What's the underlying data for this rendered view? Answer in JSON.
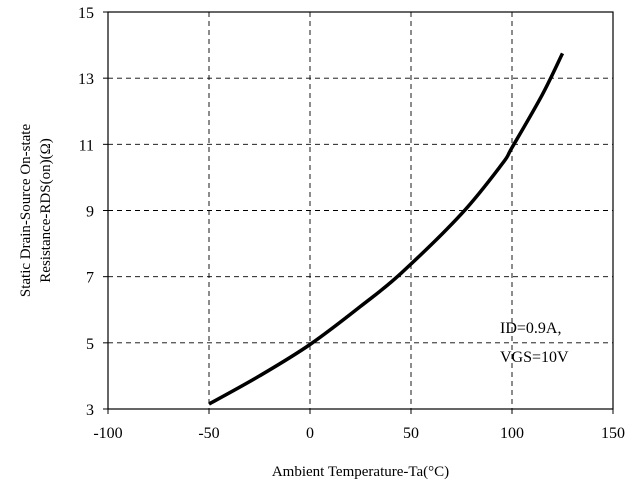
{
  "chart_data": {
    "type": "line",
    "xlabel": "Ambient Temperature-Ta(°C)",
    "ylabel_lines": [
      "Static Drain-Source On-state",
      "Resistance-RDS(on)(Ω)"
    ],
    "xlim": [
      -100,
      150
    ],
    "ylim": [
      3,
      15
    ],
    "xticks": [
      -100,
      -50,
      0,
      50,
      100,
      150
    ],
    "yticks": [
      3,
      5,
      7,
      9,
      11,
      13,
      15
    ],
    "x_tick_labels": [
      "-100",
      "-50",
      "0",
      "50",
      "100",
      "150"
    ],
    "y_tick_labels": [
      "3",
      "5",
      "7",
      "9",
      "11",
      "13",
      "15"
    ],
    "grid": true,
    "annotation_lines": [
      "ID=0.9A,",
      "VGS=10V"
    ],
    "series": [
      {
        "x": [
          -50,
          -25,
          0,
          25,
          45,
          75,
          95,
          100,
          115,
          125
        ],
        "y": [
          3.15,
          4.0,
          4.95,
          6.1,
          7.1,
          8.9,
          10.4,
          10.9,
          12.5,
          13.75
        ]
      }
    ]
  }
}
